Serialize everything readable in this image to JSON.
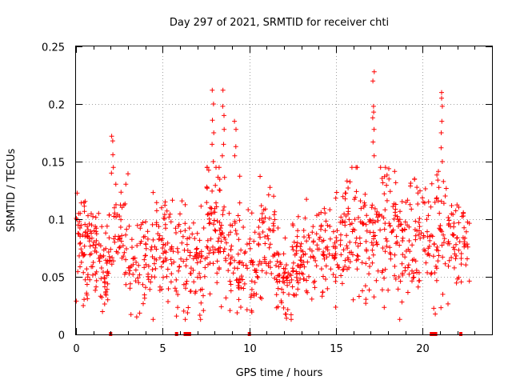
{
  "chart_data": {
    "type": "scatter",
    "title": "Day 297 of 2021, SRMTID for receiver chti",
    "xlabel": "GPS time / hours",
    "ylabel": "SRMTID / TECUs",
    "xlim": [
      0,
      24
    ],
    "ylim": [
      0,
      0.25
    ],
    "xticks": [
      0,
      5,
      10,
      15,
      20
    ],
    "xtick_labels": [
      "0",
      "5",
      "10",
      "15",
      "20"
    ],
    "yticks": [
      0,
      0.05,
      0.1,
      0.15,
      0.2,
      0.25
    ],
    "ytick_labels": [
      "0",
      "0.05",
      "0.1",
      "0.15",
      "0.2",
      "0.25"
    ],
    "grid": true,
    "marker": "+",
    "color": "#ff0000",
    "series": [
      {
        "name": "SRMTID",
        "clusters": [
          {
            "x": [
              0.0,
              1.2
            ],
            "center": 0.075,
            "spread": 0.022,
            "n": 90
          },
          {
            "x": [
              1.3,
              2.0
            ],
            "center": 0.07,
            "spread": 0.018,
            "n": 35
          },
          {
            "x": [
              1.6,
              1.9
            ],
            "center": 0.038,
            "spread": 0.008,
            "n": 12
          },
          {
            "x": [
              2.0,
              3.0
            ],
            "center": 0.085,
            "spread": 0.02,
            "n": 45
          },
          {
            "x": [
              3.0,
              4.2
            ],
            "center": 0.065,
            "spread": 0.02,
            "n": 55
          },
          {
            "x": [
              4.2,
              5.5
            ],
            "center": 0.075,
            "spread": 0.025,
            "n": 65
          },
          {
            "x": [
              5.5,
              6.3
            ],
            "center": 0.075,
            "spread": 0.025,
            "n": 35
          },
          {
            "x": [
              6.3,
              7.5
            ],
            "center": 0.06,
            "spread": 0.022,
            "n": 60
          },
          {
            "x": [
              7.5,
              8.6
            ],
            "center": 0.1,
            "spread": 0.03,
            "n": 80
          },
          {
            "x": [
              8.6,
              9.5
            ],
            "center": 0.07,
            "spread": 0.025,
            "n": 50
          },
          {
            "x": [
              9.5,
              10.5
            ],
            "center": 0.06,
            "spread": 0.02,
            "n": 45
          },
          {
            "x": [
              10.5,
              11.5
            ],
            "center": 0.085,
            "spread": 0.025,
            "n": 55
          },
          {
            "x": [
              11.5,
              12.5
            ],
            "center": 0.05,
            "spread": 0.018,
            "n": 55
          },
          {
            "x": [
              12.5,
              14.0
            ],
            "center": 0.065,
            "spread": 0.02,
            "n": 80
          },
          {
            "x": [
              14.0,
              15.5
            ],
            "center": 0.075,
            "spread": 0.02,
            "n": 75
          },
          {
            "x": [
              15.5,
              16.5
            ],
            "center": 0.09,
            "spread": 0.025,
            "n": 55
          },
          {
            "x": [
              16.5,
              17.5
            ],
            "center": 0.075,
            "spread": 0.025,
            "n": 55
          },
          {
            "x": [
              17.5,
              18.5
            ],
            "center": 0.09,
            "spread": 0.03,
            "n": 55
          },
          {
            "x": [
              18.5,
              19.5
            ],
            "center": 0.075,
            "spread": 0.025,
            "n": 55
          },
          {
            "x": [
              19.5,
              20.5
            ],
            "center": 0.09,
            "spread": 0.025,
            "n": 50
          },
          {
            "x": [
              20.5,
              21.5
            ],
            "center": 0.085,
            "spread": 0.03,
            "n": 50
          },
          {
            "x": [
              21.5,
              22.7
            ],
            "center": 0.08,
            "spread": 0.02,
            "n": 55
          }
        ],
        "spikes": [
          {
            "x": 2.1,
            "values": [
              0.172,
              0.168,
              0.156,
              0.145,
              0.14
            ]
          },
          {
            "x": 7.9,
            "values": [
              0.212,
              0.2,
              0.186,
              0.175,
              0.165,
              0.15
            ]
          },
          {
            "x": 8.5,
            "values": [
              0.212,
              0.198,
              0.19,
              0.178,
              0.165,
              0.155
            ]
          },
          {
            "x": 9.2,
            "values": [
              0.185,
              0.178,
              0.163,
              0.155
            ]
          },
          {
            "x": 17.15,
            "values": [
              0.228,
              0.22,
              0.198,
              0.193,
              0.188,
              0.178,
              0.167,
              0.155
            ]
          },
          {
            "x": 21.1,
            "values": [
              0.21,
              0.205,
              0.198,
              0.185,
              0.175,
              0.162,
              0.15
            ]
          }
        ],
        "baseline_markers_x": [
          2.0,
          5.8,
          6.3,
          6.35,
          6.45,
          6.55,
          10.0,
          20.5,
          20.55,
          20.65,
          20.75,
          22.2
        ]
      }
    ]
  }
}
